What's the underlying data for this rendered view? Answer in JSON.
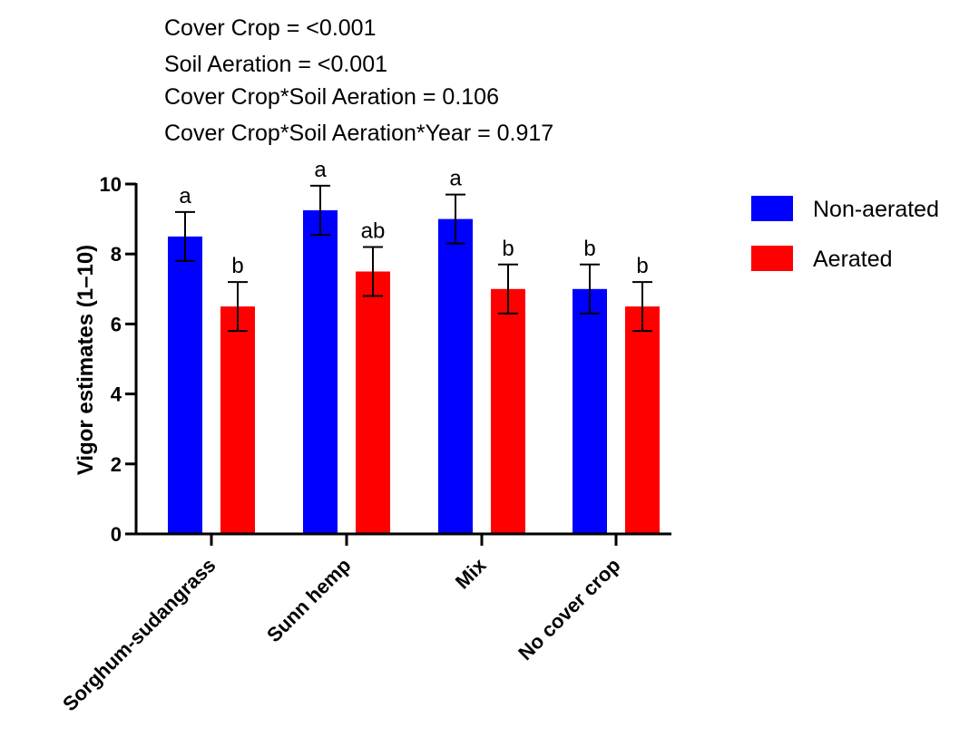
{
  "annotations": [
    "Cover Crop = <0.001",
    "Soil Aeration = <0.001",
    "Cover Crop*Soil Aeration = 0.106",
    "Cover Crop*Soil Aeration*Year = 0.917"
  ],
  "chart_data": {
    "type": "bar",
    "title": "",
    "xlabel": "",
    "ylabel": "Vigor estimates (1–10)",
    "ylim": [
      0,
      10
    ],
    "yticks": [
      "0",
      "2",
      "4",
      "6",
      "8",
      "10"
    ],
    "grid": false,
    "legend_position": "right",
    "categories": [
      "Sorghum-sudangrass",
      "Sunn hemp",
      "Mix",
      "No cover crop"
    ],
    "series": [
      {
        "name": "Non-aerated",
        "color": "#0000ff",
        "values": [
          8.5,
          9.25,
          9.0,
          7.0
        ],
        "error": [
          0.7,
          0.7,
          0.7,
          0.7
        ],
        "letters": [
          "a",
          "a",
          "a",
          "b"
        ]
      },
      {
        "name": "Aerated",
        "color": "#ff0000",
        "values": [
          6.5,
          7.5,
          7.0,
          6.5
        ],
        "error": [
          0.7,
          0.7,
          0.7,
          0.7
        ],
        "letters": [
          "b",
          "ab",
          "b",
          "b"
        ]
      }
    ]
  }
}
